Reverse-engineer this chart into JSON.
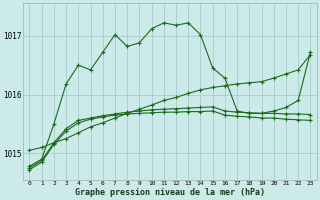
{
  "xlabel": "Graphe pression niveau de la mer (hPa)",
  "bg_color": "#cceaea",
  "grid_color": "#aacccc",
  "line_color": "#1a6b1a",
  "x_ticks": [
    0,
    1,
    2,
    3,
    4,
    5,
    6,
    7,
    8,
    9,
    10,
    11,
    12,
    13,
    14,
    15,
    16,
    17,
    18,
    19,
    20,
    21,
    22,
    23
  ],
  "ylim": [
    1014.55,
    1017.55
  ],
  "yticks": [
    1015,
    1016,
    1017
  ],
  "series": [
    [
      1014.72,
      1014.85,
      1015.15,
      1015.38,
      1015.52,
      1015.58,
      1015.62,
      1015.65,
      1015.67,
      1015.68,
      1015.69,
      1015.7,
      1015.7,
      1015.71,
      1015.71,
      1015.72,
      1015.65,
      1015.63,
      1015.62,
      1015.6,
      1015.6,
      1015.58,
      1015.57,
      1015.56
    ],
    [
      1014.75,
      1014.88,
      1015.18,
      1015.42,
      1015.56,
      1015.6,
      1015.64,
      1015.67,
      1015.7,
      1015.72,
      1015.74,
      1015.75,
      1015.76,
      1015.77,
      1015.78,
      1015.79,
      1015.72,
      1015.7,
      1015.69,
      1015.68,
      1015.68,
      1015.67,
      1015.67,
      1015.66
    ],
    [
      1015.05,
      1015.1,
      1015.18,
      1015.25,
      1015.35,
      1015.45,
      1015.52,
      1015.6,
      1015.68,
      1015.75,
      1015.82,
      1015.9,
      1015.95,
      1016.02,
      1016.08,
      1016.12,
      1016.15,
      1016.18,
      1016.2,
      1016.22,
      1016.28,
      1016.35,
      1016.42,
      1016.68
    ],
    [
      1014.78,
      1014.9,
      1015.5,
      1016.18,
      1016.5,
      1016.42,
      1016.72,
      1017.02,
      1016.82,
      1016.88,
      1017.12,
      1017.22,
      1017.18,
      1017.22,
      1017.02,
      1016.45,
      1016.28,
      1015.72,
      1015.68,
      1015.68,
      1015.72,
      1015.78,
      1015.9,
      1016.72
    ]
  ]
}
